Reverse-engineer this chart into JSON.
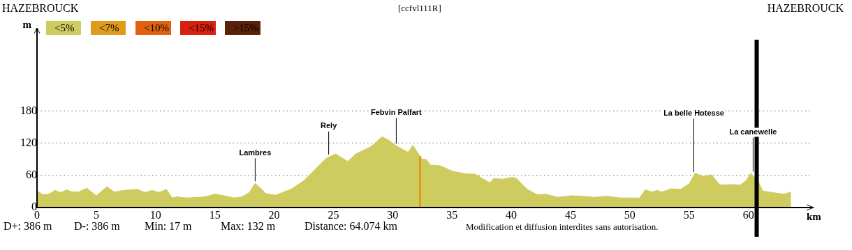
{
  "chart_data": {
    "type": "area",
    "title": "[ccfvl111R]",
    "xlabel": "km",
    "ylabel": "m",
    "xlim": [
      0,
      65.5
    ],
    "xticks": [
      0,
      5,
      10,
      15,
      20,
      25,
      30,
      35,
      40,
      45,
      50,
      55,
      60
    ],
    "ylim": [
      0,
      335
    ],
    "yticks": [
      0,
      60,
      120,
      180
    ],
    "grid": "y",
    "legend": "top left",
    "marker": "none",
    "series": [
      {
        "name": "<5%",
        "color": "#cfcc5f",
        "x": [
          0,
          0.5,
          1,
          1.5,
          2,
          2.5,
          3,
          3.5,
          4.2,
          5,
          5.9,
          6.5,
          7.3,
          8.5,
          9.1,
          9.7,
          10.3,
          10.9,
          11.4,
          11.8,
          12.6,
          13.6,
          14.2,
          15,
          15.8,
          16.6,
          17.3,
          17.9,
          18.4,
          18.9,
          19.3,
          20.1,
          20.7,
          21.5,
          22.5,
          23.5,
          24.4,
          25.2,
          26.2,
          26.9,
          28.2,
          29.1,
          29.7,
          30.3,
          31.3,
          31.7,
          32.2,
          32.5,
          32.8,
          33.2,
          34,
          35,
          36.1,
          37,
          37.5,
          38.2,
          38.5,
          39.3,
          40,
          40.4,
          41.4,
          42.2,
          42.9,
          43.9,
          45.1,
          46,
          47,
          48,
          49.2,
          50.6,
          50.8,
          51.3,
          51.9,
          52.3,
          52.7,
          53.5,
          54.3,
          55,
          55.5,
          56.2,
          56.9,
          57.6,
          58.6,
          59.3,
          59.8,
          60.2,
          60.8,
          61.2,
          62,
          63,
          63.6
        ],
        "values": [
          31,
          24,
          25,
          32,
          28,
          33,
          29,
          29,
          36,
          22,
          39,
          29,
          32,
          34,
          28,
          32,
          28,
          34,
          18,
          20,
          18,
          19,
          20,
          25,
          22,
          18,
          20,
          28,
          45,
          35,
          26,
          23,
          28,
          35,
          50,
          72,
          92,
          100,
          86,
          100,
          114,
          132,
          125,
          115,
          103,
          116,
          99,
          90,
          90,
          79,
          78,
          68,
          63,
          62,
          55,
          46,
          54,
          53,
          56,
          55,
          33,
          24,
          25,
          19,
          22,
          21,
          19,
          21,
          18,
          18,
          17,
          33,
          29,
          32,
          29,
          35,
          34,
          44,
          64,
          58,
          61,
          42,
          43,
          42,
          50,
          64,
          50,
          31,
          28,
          25,
          29
        ]
      },
      {
        "name": "<7%",
        "type": "line",
        "color": "#e09a1c",
        "x": [
          32.3,
          32.3
        ],
        "values": [
          0,
          96
        ]
      },
      {
        "name": "<10%",
        "color": "#e0620f"
      },
      {
        "name": "<15%",
        "color": "#d8200f"
      },
      {
        "name": ">15%",
        "color": "#5a2008"
      }
    ],
    "ref_lines": [
      {
        "axis": "x",
        "value": 60.7,
        "color": "#000000",
        "line_style": "solid"
      }
    ],
    "annotations": [
      {
        "text": "Lambres",
        "x": 18.4,
        "y": 45
      },
      {
        "text": "Rely",
        "x": 24.6,
        "y": 95
      },
      {
        "text": "Febvin Palfart",
        "x": 30.3,
        "y": 115
      },
      {
        "text": "La belle Hotesse",
        "x": 55.4,
        "y": 62
      },
      {
        "text": "La canewelle",
        "x": 60.4,
        "y": 63
      },
      "HAZEBROUCK",
      "HAZEBROUCK",
      "D+: 386 m",
      "D-: 386 m",
      "Min: 17 m",
      "Max: 132 m",
      "Distance: 64.074 km",
      "Modification et diffusion interdites sans autorisation."
    ]
  }
}
